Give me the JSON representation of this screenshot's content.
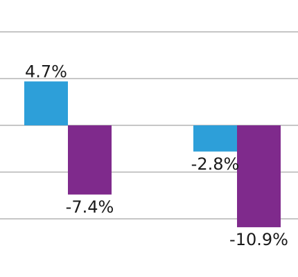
{
  "chart_data": {
    "type": "bar",
    "categories": [
      "",
      ""
    ],
    "series": [
      {
        "color": "#2d9fd9",
        "values": [
          4.7,
          -2.8
        ]
      },
      {
        "color": "#7f2a8c",
        "values": [
          -7.4,
          -10.9
        ]
      }
    ],
    "data_labels": [
      [
        "4.7%",
        "-2.8%"
      ],
      [
        "-7.4%",
        "-10.9%"
      ]
    ],
    "ylim": [
      -10.0,
      10.0
    ],
    "gridlines": [
      10,
      5,
      0,
      -5,
      -10
    ],
    "grid": true,
    "legend": "none",
    "title": "",
    "xlabel": "",
    "ylabel": ""
  }
}
